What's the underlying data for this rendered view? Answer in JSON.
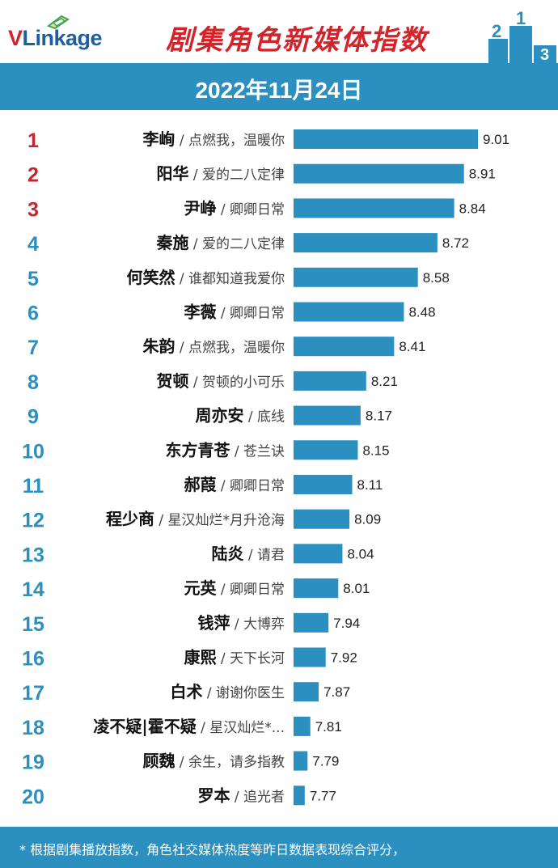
{
  "header": {
    "logo_text_v": "V",
    "logo_text_rest": "Linkage",
    "title": "剧集角色新媒体指数",
    "podium": [
      "2",
      "1",
      "3"
    ]
  },
  "date": "2022年11月24日",
  "footer": {
    "note": "* 根据剧集播放指数，角色社交媒体热度等昨日数据表现综合评分，"
  },
  "colors": {
    "bar": "#2b8fbf",
    "rank_top": "#c8232c",
    "rank_rest": "#2b8fbf",
    "title": "#d2242a",
    "header_band": "#2b8fbf"
  },
  "chart_data": {
    "type": "bar",
    "orientation": "horizontal",
    "ranks": [
      "1",
      "2",
      "3",
      "4",
      "5",
      "6",
      "7",
      "8",
      "9",
      "10",
      "11",
      "12",
      "13",
      "14",
      "15",
      "16",
      "17",
      "18",
      "19",
      "20"
    ],
    "characters": [
      "李峋",
      "阳华",
      "尹峥",
      "秦施",
      "何笑然",
      "李薇",
      "朱韵",
      "贺顿",
      "周亦安",
      "东方青苍",
      "郝葭",
      "程少商",
      "陆炎",
      "元英",
      "钱萍",
      "康熙",
      "白术",
      "凌不疑|霍不疑",
      "顾魏",
      "罗本"
    ],
    "dramas": [
      "点燃我，温暖你",
      "爱的二八定律",
      "卿卿日常",
      "爱的二八定律",
      "谁都知道我爱你",
      "卿卿日常",
      "点燃我，温暖你",
      "贺顿的小可乐",
      "底线",
      "苍兰诀",
      "卿卿日常",
      "星汉灿烂*月升沧海",
      "请君",
      "卿卿日常",
      "大博弈",
      "天下长河",
      "谢谢你医生",
      "星汉灿烂*...",
      "余生，请多指教",
      "追光者"
    ],
    "values": [
      9.01,
      8.91,
      8.84,
      8.72,
      8.58,
      8.48,
      8.41,
      8.21,
      8.17,
      8.15,
      8.11,
      8.09,
      8.04,
      8.01,
      7.94,
      7.92,
      7.87,
      7.81,
      7.79,
      7.77
    ],
    "value_labels": [
      "9.01",
      "8.91",
      "8.84",
      "8.72",
      "8.58",
      "8.48",
      "8.41",
      "8.21",
      "8.17",
      "8.15",
      "8.11",
      "8.09",
      "8.04",
      "8.01",
      "7.94",
      "7.92",
      "7.87",
      "7.81",
      "7.79",
      "7.77"
    ],
    "xlim": [
      7.69,
      9.01
    ],
    "grid": false,
    "title": "剧集角色新媒体指数"
  }
}
